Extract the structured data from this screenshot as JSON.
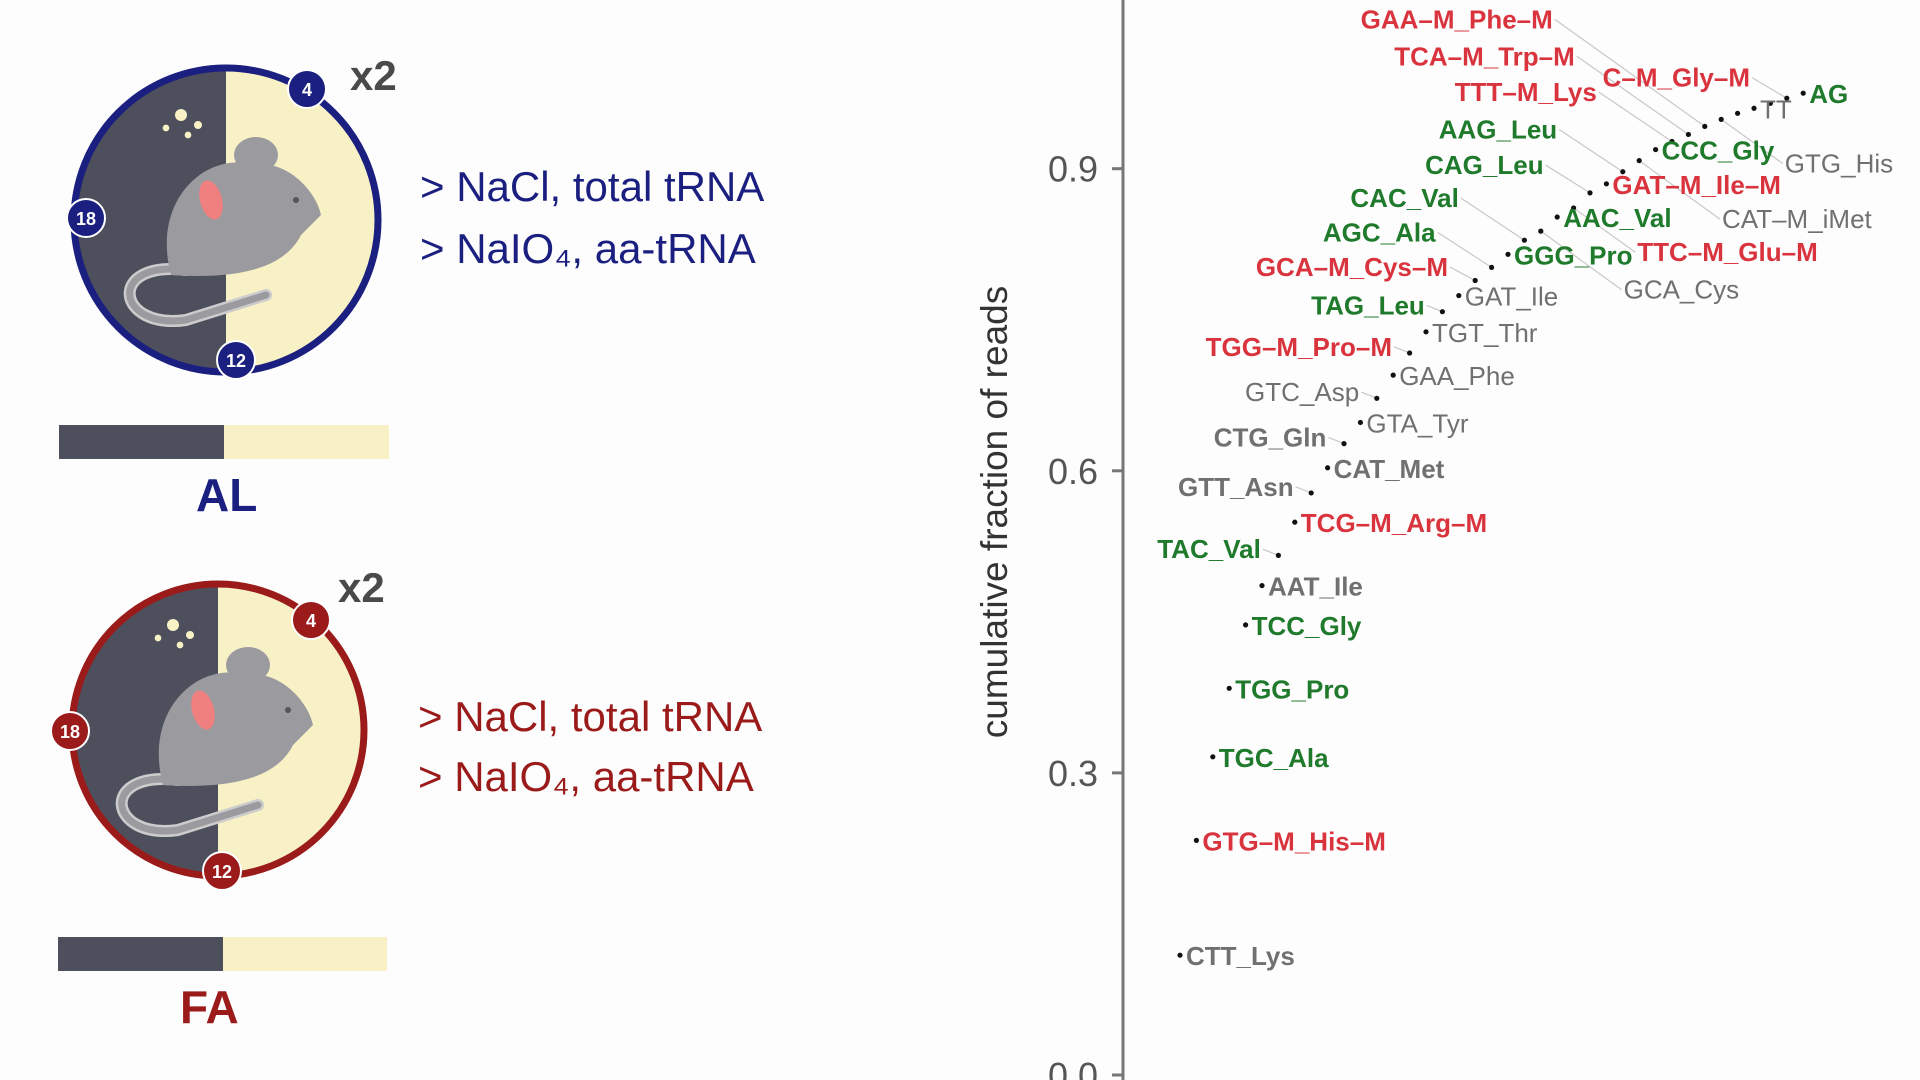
{
  "colors": {
    "al": "#1a1f80",
    "fa": "#9b1b1b",
    "dark": "#4d4f5c",
    "light": "#f8f1c6",
    "mouse": "#9a9a9f",
    "ear": "#f08080",
    "red": "#d9343e",
    "green": "#1f7a2c",
    "gray": "#707070"
  },
  "groups": [
    {
      "name": "AL",
      "multiplier": "x2",
      "lines": [
        "> NaCl, total tRNA",
        "> NaIO₄, aa-tRNA"
      ],
      "clock": [
        "4",
        "18",
        "12"
      ]
    },
    {
      "name": "FA",
      "multiplier": "x2",
      "lines": [
        "> NaCl, total tRNA",
        "> NaIO₄, aa-tRNA"
      ],
      "clock": [
        "4",
        "18",
        "12"
      ]
    }
  ],
  "chart_data": {
    "type": "scatter",
    "ylabel": "cumulative fraction of reads",
    "xlabel": "",
    "yticks": [
      "0.0",
      "0.3",
      "0.6",
      "0.9"
    ],
    "ytick_values": [
      0.0,
      0.3,
      0.6,
      0.9
    ],
    "grid": false,
    "points": [
      {
        "x": 1,
        "y": 0.119,
        "label": "CTT_Lys",
        "group": "gray"
      },
      {
        "x": 2,
        "y": 0.233,
        "label": "GTG–M_His–M",
        "group": "red"
      },
      {
        "x": 3,
        "y": 0.316,
        "label": "TGC_Ala",
        "group": "green"
      },
      {
        "x": 4,
        "y": 0.384,
        "label": "TGG_Pro",
        "group": "green"
      },
      {
        "x": 5,
        "y": 0.447,
        "label": "TCC_Gly",
        "group": "green"
      },
      {
        "x": 6,
        "y": 0.486,
        "label": "AAT_Ile",
        "group": "gray"
      },
      {
        "x": 7,
        "y": 0.516,
        "label": "TAC_Val",
        "group": "green"
      },
      {
        "x": 8,
        "y": 0.549,
        "label": "TCG–M_Arg–M",
        "group": "red"
      },
      {
        "x": 9,
        "y": 0.578,
        "label": "GTT_Asn",
        "group": "gray"
      },
      {
        "x": 10,
        "y": 0.603,
        "label": "CAT_Met",
        "group": "gray"
      },
      {
        "x": 11,
        "y": 0.627,
        "label": "CTG_Gln",
        "group": "gray"
      },
      {
        "x": 12,
        "y": 0.648,
        "label": "GTA_Tyr",
        "group": "gray"
      },
      {
        "x": 13,
        "y": 0.672,
        "label": "GTC_Asp",
        "group": "gray"
      },
      {
        "x": 14,
        "y": 0.695,
        "label": "GAA_Phe",
        "group": "gray"
      },
      {
        "x": 15,
        "y": 0.717,
        "label": "TGG–M_Pro–M",
        "group": "red"
      },
      {
        "x": 16,
        "y": 0.738,
        "label": "TGT_Thr",
        "group": "gray"
      },
      {
        "x": 17,
        "y": 0.758,
        "label": "TAG_Leu",
        "group": "green"
      },
      {
        "x": 18,
        "y": 0.774,
        "label": "GAT_Ile",
        "group": "gray"
      },
      {
        "x": 19,
        "y": 0.789,
        "label": "GCA–M_Cys–M",
        "group": "red"
      },
      {
        "x": 20,
        "y": 0.802,
        "label": "AGC_Ala",
        "group": "green"
      },
      {
        "x": 21,
        "y": 0.815,
        "label": "GGG_Pro",
        "group": "green"
      },
      {
        "x": 22,
        "y": 0.829,
        "label": "CAC_Val",
        "group": "green"
      },
      {
        "x": 23,
        "y": 0.838,
        "label": "GCA_Cys",
        "group": "gray"
      },
      {
        "x": 24,
        "y": 0.852,
        "label": "AAC_Val",
        "group": "green"
      },
      {
        "x": 25,
        "y": 0.861,
        "label": "TTC–M_Glu–M",
        "group": "red"
      },
      {
        "x": 26,
        "y": 0.876,
        "label": "CAG_Leu",
        "group": "green"
      },
      {
        "x": 27,
        "y": 0.885,
        "label": "GAT–M_Ile–M",
        "group": "red"
      },
      {
        "x": 28,
        "y": 0.897,
        "label": "AAG_Leu",
        "group": "green"
      },
      {
        "x": 29,
        "y": 0.908,
        "label": "CAT–M_iMet",
        "group": "gray"
      },
      {
        "x": 30,
        "y": 0.919,
        "label": "CCC_Gly",
        "group": "green"
      },
      {
        "x": 31,
        "y": 0.927,
        "label": "TTT–M_Lys",
        "group": "red"
      },
      {
        "x": 32,
        "y": 0.934,
        "label": "TCA–M_Trp–M",
        "group": "red"
      },
      {
        "x": 33,
        "y": 0.942,
        "label": "GAA–M_Phe–M",
        "group": "red"
      },
      {
        "x": 34,
        "y": 0.949,
        "label": "GTG_His",
        "group": "gray"
      },
      {
        "x": 35,
        "y": 0.955,
        "label": "",
        "group": "gray"
      },
      {
        "x": 36,
        "y": 0.96,
        "label": "TT",
        "group": "gray"
      },
      {
        "x": 37,
        "y": 0.965,
        "label": "",
        "group": "gray"
      },
      {
        "x": 38,
        "y": 0.97,
        "label": "C–M_Gly–M",
        "group": "red"
      },
      {
        "x": 39,
        "y": 0.975,
        "label": "AG",
        "group": "green"
      }
    ]
  }
}
